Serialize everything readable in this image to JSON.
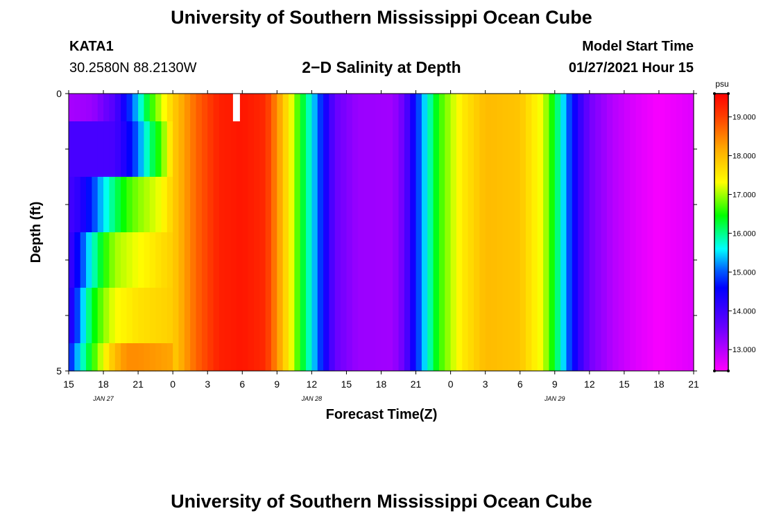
{
  "header": {
    "title": "University of Southern Mississippi Ocean Cube",
    "station": "KATA1",
    "coords": "30.2580N 88.2130W",
    "plot_title": "2−D Salinity at Depth",
    "model_start_label": "Model Start Time",
    "model_start_value": "01/27/2021 Hour 15"
  },
  "footer": {
    "title": "University of Southern Mississippi Ocean Cube"
  },
  "chart_data": {
    "type": "heatmap",
    "title": "2-D Salinity at Depth",
    "xlabel": "Forecast Time(Z)",
    "ylabel": "Depth (ft)",
    "colorbar_unit": "psu",
    "colorbar_ticks": [
      "13.000",
      "14.000",
      "15.000",
      "16.000",
      "17.000",
      "18.000",
      "19.000"
    ],
    "colorbar_range": [
      12.45,
      19.6
    ],
    "x_tick_labels": [
      "15",
      "18",
      "21",
      "0",
      "3",
      "6",
      "9",
      "12",
      "15",
      "18",
      "21",
      "0",
      "3",
      "6",
      "9",
      "12",
      "15",
      "18",
      "21"
    ],
    "date_labels": [
      {
        "label": "JAN  27",
        "tick_index": 1
      },
      {
        "label": "JAN  28",
        "tick_index": 7
      },
      {
        "label": "JAN  29",
        "tick_index": 14
      }
    ],
    "y_tick_labels": [
      "0",
      "5"
    ],
    "y_range_ft": [
      0,
      5
    ],
    "x_range_hours": [
      0,
      54
    ],
    "series_surface": [
      {
        "hour": 0,
        "value": 13.1
      },
      {
        "hour": 2,
        "value": 13.2
      },
      {
        "hour": 4,
        "value": 13.8
      },
      {
        "hour": 5.5,
        "value": 15.0
      },
      {
        "hour": 7,
        "value": 16.5
      },
      {
        "hour": 9,
        "value": 17.8
      },
      {
        "hour": 11,
        "value": 18.7
      },
      {
        "hour": 13,
        "value": 19.3
      },
      {
        "hour": 15,
        "value": 19.4
      },
      {
        "hour": 17,
        "value": 19.2
      },
      {
        "hour": 18,
        "value": 18.4
      },
      {
        "hour": 19,
        "value": 17.5
      },
      {
        "hour": 20,
        "value": 16.5
      },
      {
        "hour": 21,
        "value": 15.6
      },
      {
        "hour": 22,
        "value": 14.6
      },
      {
        "hour": 23,
        "value": 13.6
      },
      {
        "hour": 25,
        "value": 13.2
      },
      {
        "hour": 28,
        "value": 13.15
      },
      {
        "hour": 29,
        "value": 13.6
      },
      {
        "hour": 30,
        "value": 14.7
      },
      {
        "hour": 31,
        "value": 15.7
      },
      {
        "hour": 32,
        "value": 16.6
      },
      {
        "hour": 34,
        "value": 17.5
      },
      {
        "hour": 36,
        "value": 18.0
      },
      {
        "hour": 39,
        "value": 17.9
      },
      {
        "hour": 41,
        "value": 17.2
      },
      {
        "hour": 42,
        "value": 16.3
      },
      {
        "hour": 43,
        "value": 15.2
      },
      {
        "hour": 44,
        "value": 14.2
      },
      {
        "hour": 45,
        "value": 13.5
      },
      {
        "hour": 47,
        "value": 13.0
      },
      {
        "hour": 49,
        "value": 12.7
      },
      {
        "hour": 51,
        "value": 12.5
      },
      {
        "hour": 54,
        "value": 12.7
      }
    ],
    "early_layer_profiles": [
      {
        "depth_band_ft": [
          0.0,
          0.5
        ],
        "points": [
          {
            "hour": 0,
            "value": 13.1
          },
          {
            "hour": 2,
            "value": 13.2
          },
          {
            "hour": 4,
            "value": 13.8
          },
          {
            "hour": 5.5,
            "value": 15.0
          },
          {
            "hour": 7,
            "value": 16.5
          },
          {
            "hour": 9,
            "value": 17.8
          }
        ]
      },
      {
        "depth_band_ft": [
          0.5,
          1.5
        ],
        "points": [
          {
            "hour": 0,
            "value": 13.9
          },
          {
            "hour": 4,
            "value": 13.9
          },
          {
            "hour": 5,
            "value": 14.4
          },
          {
            "hour": 6,
            "value": 15.1
          },
          {
            "hour": 7,
            "value": 16.0
          },
          {
            "hour": 8,
            "value": 16.7
          },
          {
            "hour": 9,
            "value": 17.8
          }
        ]
      },
      {
        "depth_band_ft": [
          1.5,
          2.5
        ],
        "points": [
          {
            "hour": 0,
            "value": 13.9
          },
          {
            "hour": 1,
            "value": 14.2
          },
          {
            "hour": 2,
            "value": 14.8
          },
          {
            "hour": 3,
            "value": 15.5
          },
          {
            "hour": 4,
            "value": 16.1
          },
          {
            "hour": 5,
            "value": 16.6
          },
          {
            "hour": 6,
            "value": 16.9
          },
          {
            "hour": 8,
            "value": 17.3
          },
          {
            "hour": 9,
            "value": 17.8
          }
        ]
      },
      {
        "depth_band_ft": [
          2.5,
          3.5
        ],
        "points": [
          {
            "hour": 0,
            "value": 13.9
          },
          {
            "hour": 1,
            "value": 14.8
          },
          {
            "hour": 2,
            "value": 15.7
          },
          {
            "hour": 3,
            "value": 16.5
          },
          {
            "hour": 4,
            "value": 17.0
          },
          {
            "hour": 6,
            "value": 17.3
          },
          {
            "hour": 9,
            "value": 17.8
          }
        ]
      },
      {
        "depth_band_ft": [
          3.5,
          4.5
        ],
        "points": [
          {
            "hour": 0,
            "value": 14.0
          },
          {
            "hour": 1,
            "value": 15.2
          },
          {
            "hour": 2,
            "value": 16.3
          },
          {
            "hour": 3,
            "value": 16.9
          },
          {
            "hour": 4,
            "value": 17.3
          },
          {
            "hour": 6,
            "value": 17.6
          },
          {
            "hour": 9,
            "value": 17.8
          }
        ]
      },
      {
        "depth_band_ft": [
          4.5,
          5.0
        ],
        "points": [
          {
            "hour": 0,
            "value": 14.6
          },
          {
            "hour": 1,
            "value": 15.6
          },
          {
            "hour": 2,
            "value": 16.5
          },
          {
            "hour": 3,
            "value": 17.3
          },
          {
            "hour": 4,
            "value": 18.0
          },
          {
            "hour": 5,
            "value": 18.4
          },
          {
            "hour": 6,
            "value": 18.4
          },
          {
            "hour": 9,
            "value": 18.2
          }
        ]
      }
    ],
    "missing_data": [
      {
        "hour": 14.5,
        "depth_band_ft": [
          0.0,
          0.5
        ]
      }
    ]
  }
}
